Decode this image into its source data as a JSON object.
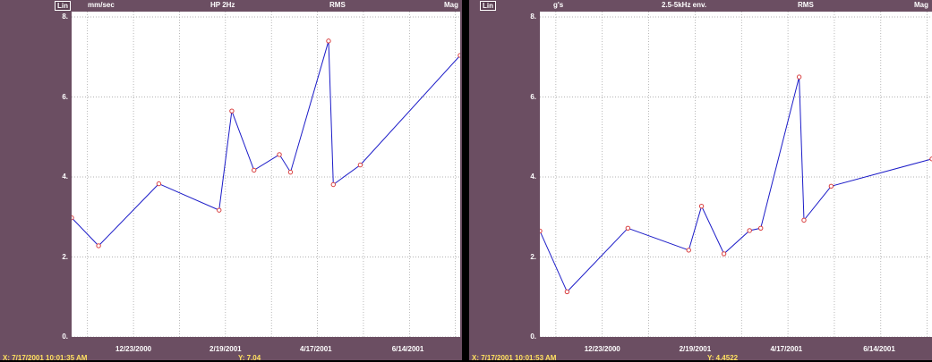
{
  "colors": {
    "panel_bg": "#6b4e62",
    "plot_bg": "#ffffff",
    "line": "#1c1cc8",
    "marker": "#d94040",
    "grid": "#9a9a9a",
    "readout": "#ffe060"
  },
  "charts": [
    {
      "header": {
        "scale_button": "Lin",
        "units": "mm/sec",
        "filter": "HP 2Hz",
        "detection": "RMS",
        "display": "Mag"
      },
      "readout": {
        "x": "X: 7/17/2001 10:01:35 AM",
        "y": "Y: 7.04"
      }
    },
    {
      "header": {
        "scale_button": "Lin",
        "units": "g's",
        "filter": "2.5-5kHz env.",
        "detection": "RMS",
        "display": "Mag"
      },
      "readout": {
        "x": "X: 7/17/2001 10:01:53 AM",
        "y": "Y: 4.4522"
      }
    }
  ],
  "chart_data": [
    {
      "type": "line",
      "ylabel": "mm/sec",
      "ylim": [
        0,
        8
      ],
      "xlim": [
        "2000-11-14",
        "2001-07-17"
      ],
      "y_ticks": [
        "0.",
        "2.",
        "4.",
        "6.",
        "8."
      ],
      "x_ticks": [
        "12/23/2000",
        "2/19/2001",
        "4/17/2001",
        "6/14/2001"
      ],
      "grid": true,
      "series": [
        {
          "x": [
            "2000-11-14",
            "2000-12-01",
            "2001-01-08",
            "2001-02-15",
            "2001-02-23",
            "2001-03-09",
            "2001-03-25",
            "2001-04-01",
            "2001-04-25",
            "2001-04-28",
            "2001-05-15",
            "2001-07-17"
          ],
          "values": [
            2.98,
            2.28,
            3.83,
            3.17,
            5.65,
            4.17,
            4.56,
            4.12,
            7.4,
            3.81,
            4.3,
            7.04
          ]
        }
      ]
    },
    {
      "type": "line",
      "ylabel": "g's",
      "ylim": [
        0,
        8
      ],
      "xlim": [
        "2000-11-14",
        "2001-07-17"
      ],
      "y_ticks": [
        "0.",
        "2.",
        "4.",
        "6.",
        "8."
      ],
      "x_ticks": [
        "12/23/2000",
        "2/19/2001",
        "4/17/2001",
        "6/14/2001"
      ],
      "grid": true,
      "series": [
        {
          "x": [
            "2000-11-14",
            "2000-12-01",
            "2001-01-08",
            "2001-02-15",
            "2001-02-23",
            "2001-03-09",
            "2001-03-25",
            "2001-04-01",
            "2001-04-25",
            "2001-04-28",
            "2001-05-15",
            "2001-07-17"
          ],
          "values": [
            2.65,
            1.13,
            2.72,
            2.17,
            3.27,
            2.08,
            2.66,
            2.72,
            6.5,
            2.92,
            3.77,
            4.4522
          ]
        }
      ]
    }
  ]
}
